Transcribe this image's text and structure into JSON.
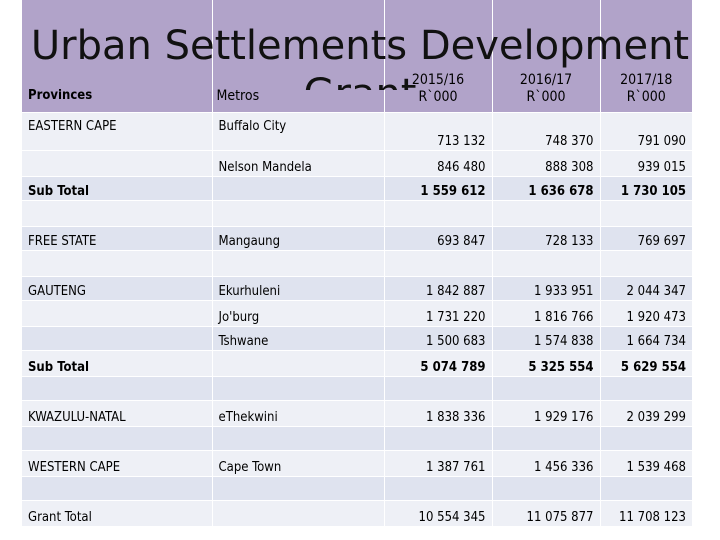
{
  "title_line1": "Urban Settlements Development",
  "title_line2": "Grant",
  "header": {
    "provinces": "Provinces",
    "metros": "Metros",
    "years": [
      {
        "year": "2015/16",
        "unit": "R`000"
      },
      {
        "year": "2016/17",
        "unit": "R`000"
      },
      {
        "year": "2017/18",
        "unit": "R`000"
      }
    ]
  },
  "rows": [
    {
      "province": "EASTERN CAPE",
      "metro": "Buffalo City",
      "v1": "713 132",
      "v2": "748 370",
      "v3": "791 090"
    },
    {
      "province": "",
      "metro": "Nelson Mandela",
      "v1": "846 480",
      "v2": "888 308",
      "v3": "939 015"
    },
    {
      "province": "Sub Total",
      "metro": "",
      "v1": "1 559 612",
      "v2": "1 636 678",
      "v3": "1 730 105"
    },
    {
      "province": "",
      "metro": "",
      "v1": "",
      "v2": "",
      "v3": ""
    },
    {
      "province": "FREE STATE",
      "metro": "Mangaung",
      "v1": "693 847",
      "v2": "728 133",
      "v3": "769 697"
    },
    {
      "province": "",
      "metro": "",
      "v1": "",
      "v2": "",
      "v3": ""
    },
    {
      "province": "GAUTENG",
      "metro": "Ekurhuleni",
      "v1": "1 842 887",
      "v2": "1 933 951",
      "v3": "2 044 347"
    },
    {
      "province": "",
      "metro": "Jo'burg",
      "v1": "1 731 220",
      "v2": "1 816 766",
      "v3": "1 920 473"
    },
    {
      "province": "",
      "metro": "Tshwane",
      "v1": "1 500 683",
      "v2": "1 574 838",
      "v3": "1 664 734"
    },
    {
      "province": "Sub Total",
      "metro": "",
      "v1": "5 074 789",
      "v2": "5 325 554",
      "v3": "5 629 554"
    },
    {
      "province": "",
      "metro": "",
      "v1": "",
      "v2": "",
      "v3": ""
    },
    {
      "province": "KWAZULU-NATAL",
      "metro": "eThekwini",
      "v1": "1 838 336",
      "v2": "1 929 176",
      "v3": "2 039 299"
    },
    {
      "province": "",
      "metro": "",
      "v1": "",
      "v2": "",
      "v3": ""
    },
    {
      "province": "WESTERN CAPE",
      "metro": "Cape Town",
      "v1": "1 387 761",
      "v2": "1 456 336",
      "v3": "1 539 468"
    },
    {
      "province": "",
      "metro": "",
      "v1": "",
      "v2": "",
      "v3": ""
    },
    {
      "province": "Grant Total",
      "metro": "",
      "v1": "10 554 345",
      "v2": "11 075 877",
      "v3": "11 708 123"
    }
  ],
  "colors": {
    "header_bg": "#b1a3c9",
    "row_light": "#eef0f6",
    "row_dark": "#dfe3ef"
  }
}
